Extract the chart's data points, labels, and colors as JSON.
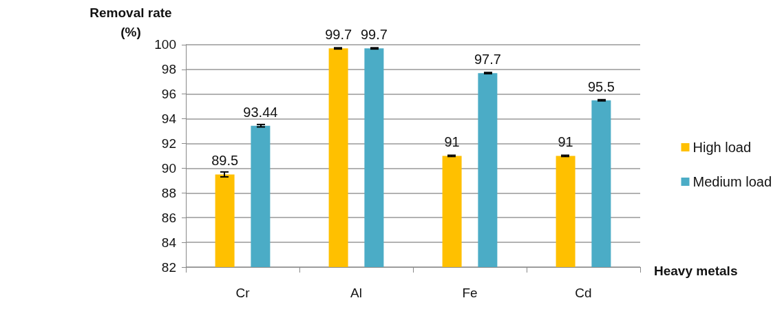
{
  "chart_data": {
    "type": "bar",
    "xlabel": "Heavy metals",
    "ylabel": "Removal rate\n(%)",
    "categories": [
      "Cr",
      "Al",
      "Fe",
      "Cd"
    ],
    "series": [
      {
        "name": "High load",
        "color": "#ffc000",
        "values": [
          89.5,
          99.7,
          91,
          91
        ],
        "errors": [
          0.2,
          0.05,
          0.05,
          0.05
        ]
      },
      {
        "name": "Medium load",
        "color": "#4bacc6",
        "values": [
          93.44,
          99.7,
          97.7,
          95.5
        ],
        "errors": [
          0.1,
          0.05,
          0.05,
          0.05
        ]
      }
    ],
    "ylim": [
      82,
      100
    ],
    "yticks": [
      82,
      84,
      86,
      88,
      90,
      92,
      94,
      96,
      98,
      100
    ],
    "grid": "y",
    "legend": "right",
    "data_labels": true
  }
}
